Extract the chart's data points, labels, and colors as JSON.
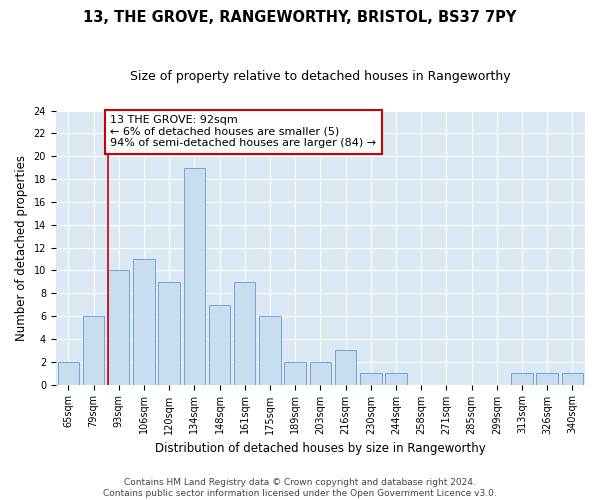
{
  "title": "13, THE GROVE, RANGEWORTHY, BRISTOL, BS37 7PY",
  "subtitle": "Size of property relative to detached houses in Rangeworthy",
  "xlabel": "Distribution of detached houses by size in Rangeworthy",
  "ylabel": "Number of detached properties",
  "categories": [
    "65sqm",
    "79sqm",
    "93sqm",
    "106sqm",
    "120sqm",
    "134sqm",
    "148sqm",
    "161sqm",
    "175sqm",
    "189sqm",
    "203sqm",
    "216sqm",
    "230sqm",
    "244sqm",
    "258sqm",
    "271sqm",
    "285sqm",
    "299sqm",
    "313sqm",
    "326sqm",
    "340sqm"
  ],
  "values": [
    2,
    6,
    10,
    11,
    9,
    19,
    7,
    9,
    6,
    2,
    2,
    3,
    1,
    1,
    0,
    0,
    0,
    0,
    1,
    1,
    1
  ],
  "bar_color": "#c9ddf0",
  "bar_edge_color": "#6699cc",
  "annotation_text": "13 THE GROVE: 92sqm\n← 6% of detached houses are smaller (5)\n94% of semi-detached houses are larger (84) →",
  "annotation_box_color": "#ffffff",
  "annotation_box_edge": "#cc0000",
  "vline_color": "#cc0000",
  "grid_color": "#dce9f5",
  "background_color": "#ffffff",
  "footer_line1": "Contains HM Land Registry data © Crown copyright and database right 2024.",
  "footer_line2": "Contains public sector information licensed under the Open Government Licence v3.0.",
  "ylim": [
    0,
    24
  ],
  "yticks": [
    0,
    2,
    4,
    6,
    8,
    10,
    12,
    14,
    16,
    18,
    20,
    22,
    24
  ],
  "title_fontsize": 10.5,
  "subtitle_fontsize": 9,
  "axis_label_fontsize": 8.5,
  "tick_fontsize": 7,
  "footer_fontsize": 6.5,
  "annotation_fontsize": 8,
  "vline_x_index": 2,
  "vline_x_offset": -0.43
}
